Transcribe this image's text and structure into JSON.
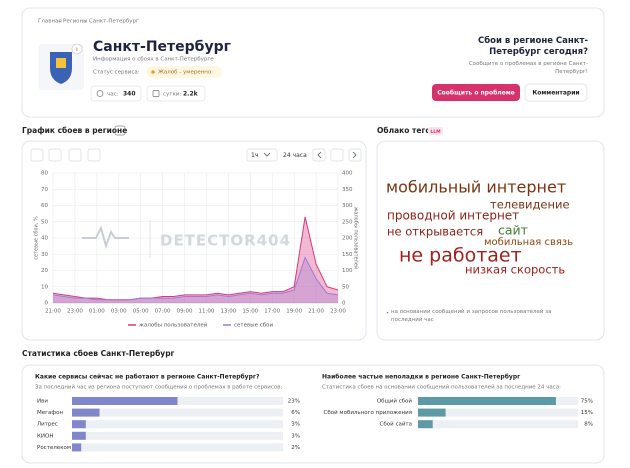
{
  "breadcrumbs": [
    "Главная",
    "Регионы",
    "Санкт-Петербург"
  ],
  "header": {
    "title": "Санкт-Петербург",
    "subtitle": "Информация о сбоях в Санкт-Петербурге",
    "status_label": "Статус сервиса:",
    "status": "Жалоб - умеренно",
    "hour_label": "час:",
    "hour": 340,
    "day_label": "сутки:",
    "day": "2.2k",
    "question": "Сбои в регионе Санкт-Петербург сегодня?",
    "prompt": "Сообщите о проблемах в регионе Санкт-Петербург!",
    "report_button": "Сообщить о проблеме",
    "comments_button": "Комментарии"
  },
  "chart_section": {
    "title": "График сбоев в регионе",
    "period_short": "1ч",
    "period": "24 часа",
    "watermark": "DETECTOR404"
  },
  "chart_data": {
    "type": "line",
    "categories": [
      "21:00",
      null,
      "23:00",
      null,
      "01:00",
      null,
      "03:00",
      null,
      "05:00",
      null,
      "07:00",
      null,
      "09:00",
      null,
      "11:00",
      null,
      "13:00",
      null,
      "15:00",
      null,
      "17:00",
      null,
      "19:00",
      null,
      "21:00",
      null,
      "23:00"
    ],
    "series": [
      {
        "name": "жалобы пользователей",
        "color": "#d63a7e",
        "axis": "y2",
        "values": [
          30,
          25,
          20,
          15,
          15,
          10,
          10,
          10,
          15,
          15,
          20,
          20,
          25,
          25,
          25,
          30,
          25,
          30,
          35,
          30,
          35,
          35,
          50,
          265,
          120,
          50,
          40
        ]
      },
      {
        "name": "сетевые сбои",
        "color": "#a07ad6",
        "values": [
          5,
          4,
          3,
          3,
          2,
          2,
          2,
          2,
          3,
          3,
          3,
          3,
          4,
          4,
          4,
          5,
          4,
          5,
          6,
          5,
          6,
          6,
          8,
          28,
          15,
          6,
          5
        ]
      }
    ],
    "ylim": [
      0,
      80
    ],
    "yticks": [
      0,
      10,
      20,
      30,
      40,
      50,
      60,
      70,
      80
    ],
    "y2lim": [
      0,
      400
    ],
    "y2ticks": [
      0,
      50,
      100,
      150,
      200,
      250,
      300,
      350,
      400
    ],
    "ylabel": "сетевые сбои, %",
    "y2label": "жалобы пользователей",
    "grid": true,
    "legend": "bottom"
  },
  "tags": {
    "title": "Облако тегов",
    "badge": "LLM",
    "words": [
      "мобильный интернет",
      "телевидение",
      "проводной интернет",
      "не открывается",
      "сайт",
      "мобильная связь",
      "не работает",
      "низкая скорость"
    ],
    "note": "на основании сообщений и запросов пользователей за последний час"
  },
  "stats": {
    "title": "Статистика сбоев Санкт-Петербург",
    "services": {
      "title": "Какие сервисы сейчас не работают в регионе Санкт-Петербург?",
      "subtitle": "За последний час из региона поступают сообщения о проблемах в работе сервисов:",
      "names": [
        "Иви",
        "Мегафон",
        "Литрес",
        "КИОН",
        "Ростелеком"
      ],
      "values": [
        23,
        6,
        3,
        3,
        2
      ],
      "value_labels": [
        "23%",
        "6%",
        "3%",
        "3%",
        "2%"
      ]
    },
    "problems": {
      "title": "Наиболее частые неполадки в регионе Санкт-Петербург",
      "subtitle": "Статистика сбоев на основании сообщений пользователей за последние 24 часа:",
      "names": [
        "Общий сбой",
        "Сбой мобильного приложения",
        "Сбой сайта"
      ],
      "values": [
        75,
        15,
        8
      ],
      "value_labels": [
        "75%",
        "15%",
        "8%"
      ]
    }
  }
}
